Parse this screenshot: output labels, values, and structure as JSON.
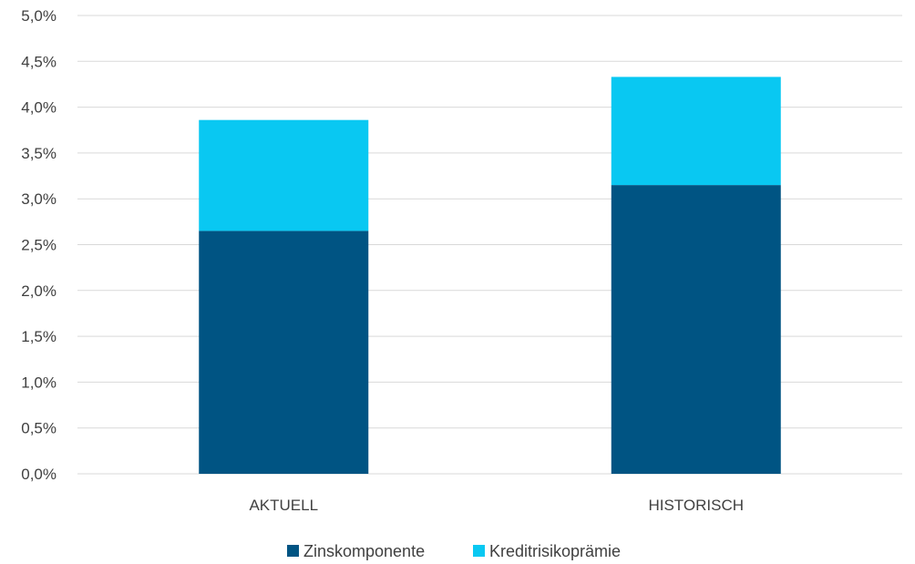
{
  "chart_data": {
    "type": "bar",
    "stacked": true,
    "categories": [
      "AKTUELL",
      "HISTORISCH"
    ],
    "series": [
      {
        "name": "Zinskomponente",
        "values": [
          2.65,
          3.15
        ],
        "color": "#005483"
      },
      {
        "name": "Kreditrisikoprämie",
        "values": [
          1.21,
          1.18
        ],
        "color": "#09c8f2"
      }
    ],
    "title": "",
    "xlabel": "",
    "ylabel": "",
    "ylim": [
      0,
      5.0
    ],
    "yticks": [
      0,
      0.5,
      1.0,
      1.5,
      2.0,
      2.5,
      3.0,
      3.5,
      4.0,
      4.5,
      5.0
    ],
    "ytick_labels": [
      "0,0%",
      "0,5%",
      "1,0%",
      "1,5%",
      "2,0%",
      "2,5%",
      "3,0%",
      "3,5%",
      "4,0%",
      "4,5%",
      "5,0%"
    ],
    "grid": true,
    "legend_position": "bottom"
  }
}
